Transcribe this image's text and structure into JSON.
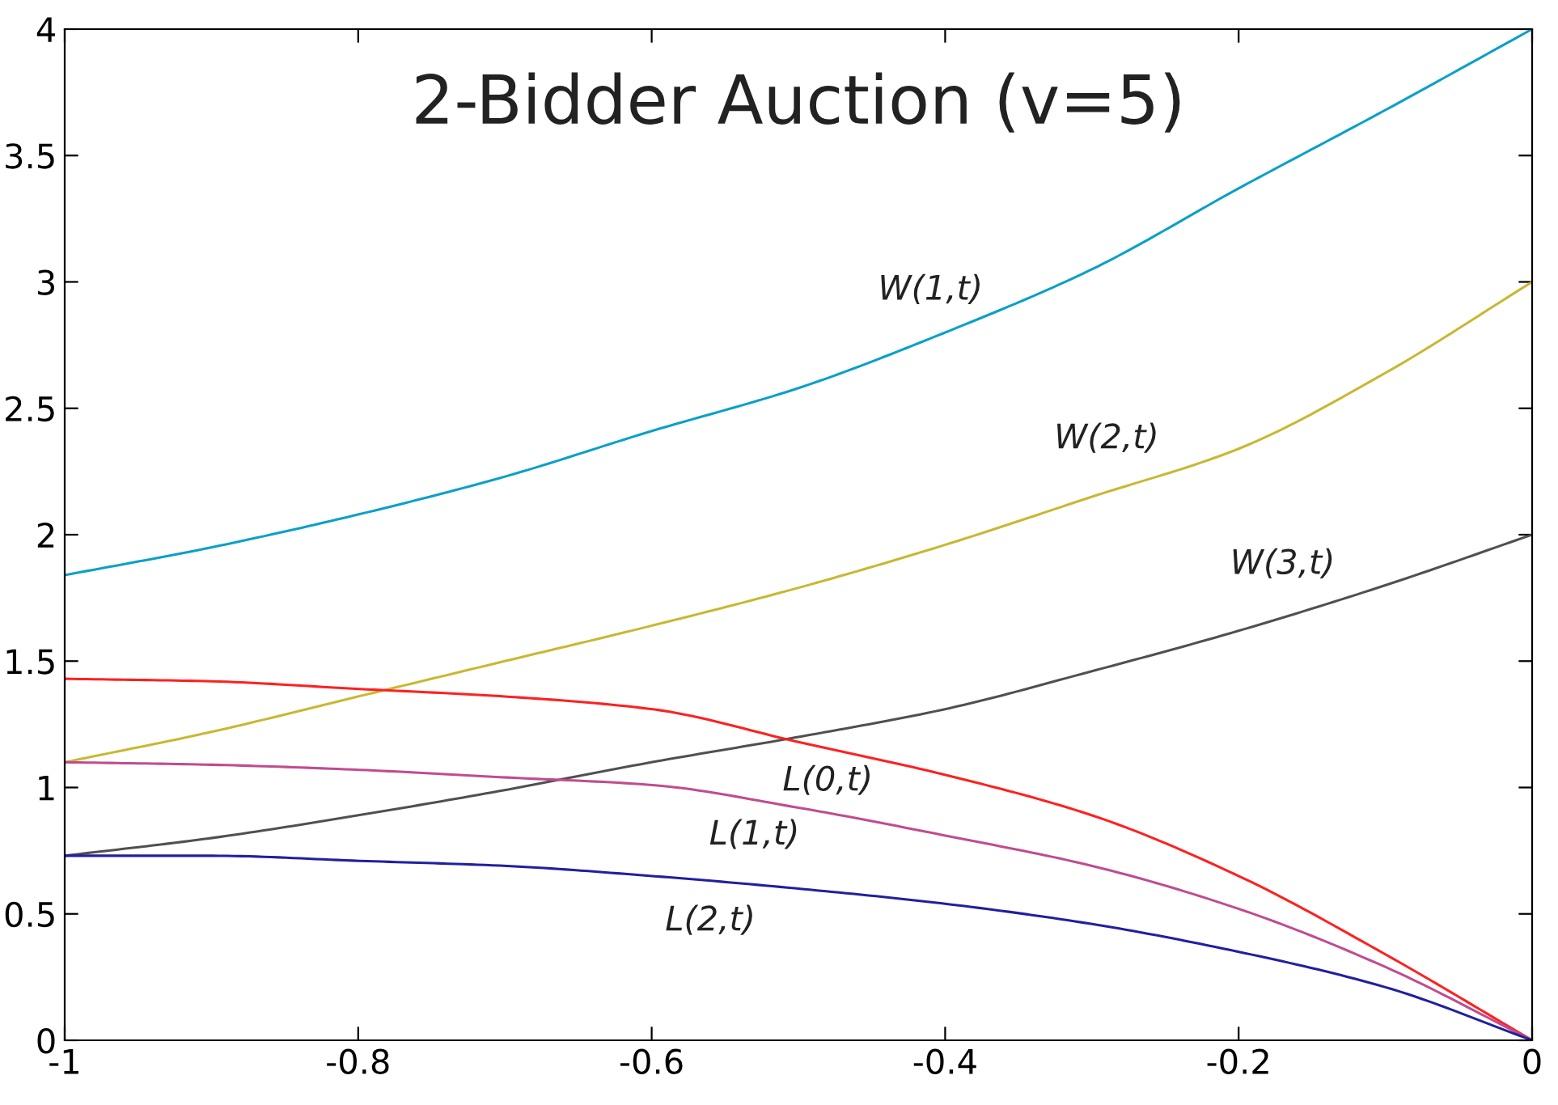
{
  "chart_data": {
    "type": "line",
    "title": "2-Bidder Auction (v=5)",
    "x": [
      -1,
      -0.9,
      -0.8,
      -0.7,
      -0.6,
      -0.5,
      -0.4,
      -0.3,
      -0.2,
      -0.1,
      0
    ],
    "series": [
      {
        "name": "W(1,t)",
        "color": "#0aa0c8",
        "values": [
          1.84,
          1.95,
          2.08,
          2.23,
          2.41,
          2.58,
          2.8,
          3.05,
          3.37,
          3.68,
          4.0
        ]
      },
      {
        "name": "W(2,t)",
        "color": "#c8b832",
        "values": [
          1.1,
          1.22,
          1.36,
          1.5,
          1.64,
          1.79,
          1.96,
          2.15,
          2.34,
          2.64,
          3.0
        ]
      },
      {
        "name": "W(3,t)",
        "color": "#505050",
        "values": [
          0.73,
          0.8,
          0.89,
          0.99,
          1.1,
          1.2,
          1.31,
          1.46,
          1.62,
          1.8,
          2.0
        ]
      },
      {
        "name": "L(0,t)",
        "color": "#ff2020",
        "values": [
          1.43,
          1.42,
          1.39,
          1.36,
          1.31,
          1.18,
          1.05,
          0.89,
          0.65,
          0.34,
          0
        ]
      },
      {
        "name": "L(1,t)",
        "color": "#c04c90",
        "values": [
          1.1,
          1.09,
          1.07,
          1.04,
          1.01,
          0.92,
          0.81,
          0.69,
          0.52,
          0.29,
          0
        ]
      },
      {
        "name": "L(2,t)",
        "color": "#2020a0",
        "values": [
          0.73,
          0.73,
          0.71,
          0.69,
          0.65,
          0.6,
          0.54,
          0.46,
          0.35,
          0.21,
          0
        ]
      }
    ],
    "xlim": [
      -1,
      0
    ],
    "ylim": [
      0,
      4
    ],
    "xticks": [
      -1,
      -0.8,
      -0.6,
      -0.4,
      -0.2,
      0
    ],
    "yticks": [
      0,
      0.5,
      1,
      1.5,
      2,
      2.5,
      3,
      3.5,
      4
    ],
    "grid": false,
    "legend": false,
    "marker": "none",
    "line_style": "solid"
  }
}
